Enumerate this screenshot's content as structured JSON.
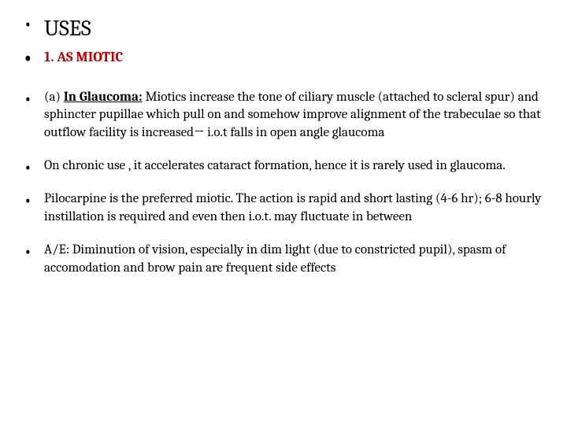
{
  "title": "USES",
  "subhead": "1. AS MIOTIC",
  "items": [
    {
      "prefix": "(a) ",
      "lead": "In Glaucoma:",
      "lead_underline": true,
      "rest": "   Miotics increase the tone of ciliary muscle (attached to scleral spur) and sphincter pupillae which pull on and somehow improve alignment of the trabeculae so that outflow facility is increased→ i.o.t falls in open angle glaucoma"
    },
    {
      "prefix": "",
      "lead": "",
      "lead_underline": false,
      "rest": "On chronic use , it accelerates cataract formation, hence it is rarely used in glaucoma."
    },
    {
      "prefix": "",
      "lead": "",
      "lead_underline": false,
      "rest": "Pilocarpine is the preferred miotic. The action is rapid and short lasting (4-6 hr); 6-8 hourly instillation is required and even then i.o.t. may fluctuate in between"
    },
    {
      "prefix": "",
      "lead": "",
      "lead_underline": false,
      "rest": "A/E: Diminution of vision, especially in dim light (due to constricted pupil), spasm of accomodation and brow pain are frequent side effects"
    }
  ],
  "colors": {
    "background": "#ffffff",
    "text": "#000000",
    "accent": "#c00000"
  }
}
